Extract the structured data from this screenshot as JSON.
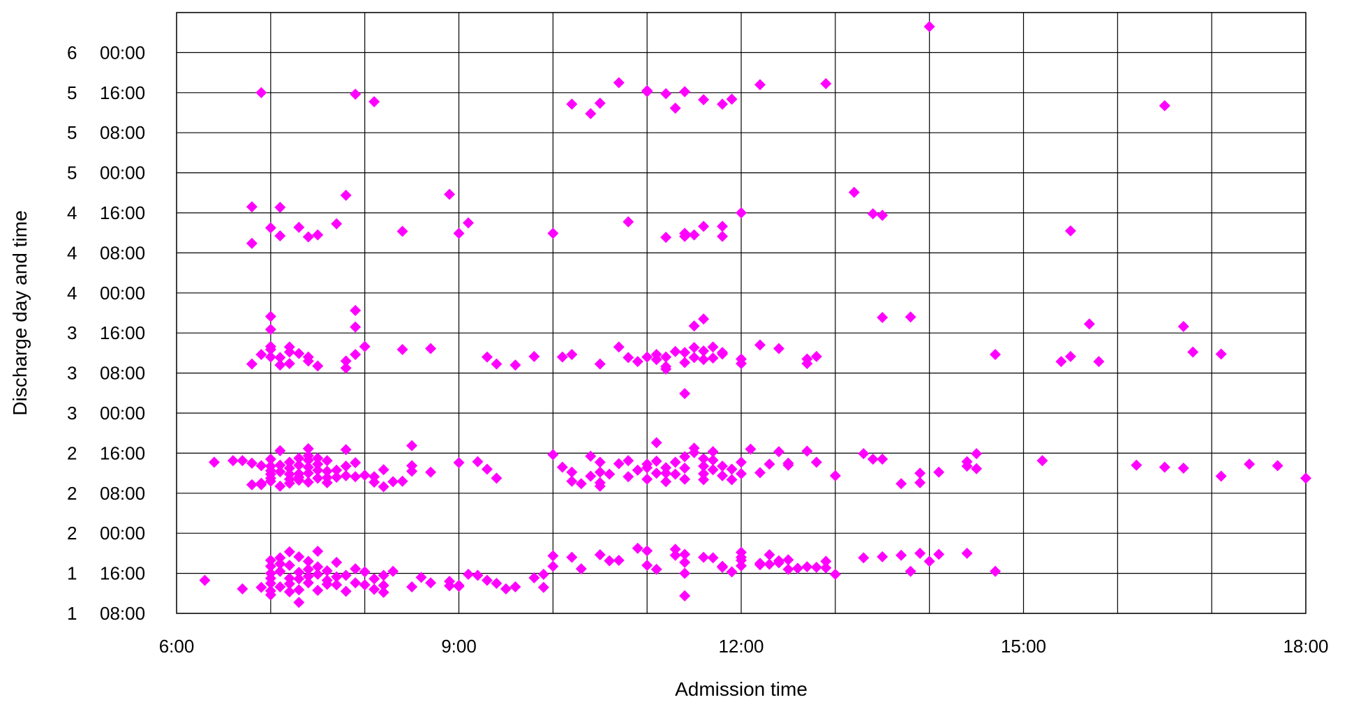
{
  "chart_data": {
    "type": "scatter",
    "title": "",
    "xlabel": "Admission time",
    "ylabel": "Discharge day and time",
    "x_unit": "hour of day",
    "y_unit": "hours after midnight of day 1",
    "xlim": [
      6,
      18
    ],
    "ylim": [
      8,
      128
    ],
    "grid": true,
    "marker": "diamond",
    "marker_color": "#ff00ff",
    "x_tick_labels": [
      {
        "value": 6,
        "label": "6:00"
      },
      {
        "value": 9,
        "label": "9:00"
      },
      {
        "value": 12,
        "label": "12:00"
      },
      {
        "value": 15,
        "label": "15:00"
      },
      {
        "value": 18,
        "label": "18:00"
      }
    ],
    "x_gridlines": [
      6,
      7,
      8,
      9,
      10,
      11,
      12,
      13,
      14,
      15,
      16,
      17,
      18
    ],
    "y_tick_labels": [
      {
        "value": 8,
        "day": "1",
        "time": "08:00"
      },
      {
        "value": 16,
        "day": "1",
        "time": "16:00"
      },
      {
        "value": 24,
        "day": "2",
        "time": "00:00"
      },
      {
        "value": 32,
        "day": "2",
        "time": "08:00"
      },
      {
        "value": 40,
        "day": "2",
        "time": "16:00"
      },
      {
        "value": 48,
        "day": "3",
        "time": "00:00"
      },
      {
        "value": 56,
        "day": "3",
        "time": "08:00"
      },
      {
        "value": 64,
        "day": "3",
        "time": "16:00"
      },
      {
        "value": 72,
        "day": "4",
        "time": "00:00"
      },
      {
        "value": 80,
        "day": "4",
        "time": "08:00"
      },
      {
        "value": 88,
        "day": "4",
        "time": "16:00"
      },
      {
        "value": 96,
        "day": "5",
        "time": "00:00"
      },
      {
        "value": 104,
        "day": "5",
        "time": "08:00"
      },
      {
        "value": 112,
        "day": "5",
        "time": "16:00"
      },
      {
        "value": 120,
        "day": "6",
        "time": "00:00"
      }
    ],
    "points": [
      [
        6.9,
        112.0
      ],
      [
        7.9,
        111.7
      ],
      [
        8.1,
        110.2
      ],
      [
        10.2,
        109.7
      ],
      [
        10.5,
        109.9
      ],
      [
        10.4,
        107.8
      ],
      [
        10.7,
        114.0
      ],
      [
        11.0,
        112.2
      ],
      [
        11.0,
        112.4
      ],
      [
        11.2,
        111.8
      ],
      [
        11.4,
        112.2
      ],
      [
        11.6,
        110.6
      ],
      [
        11.3,
        108.9
      ],
      [
        11.9,
        110.7
      ],
      [
        11.8,
        109.7
      ],
      [
        12.2,
        113.6
      ],
      [
        12.9,
        113.8
      ],
      [
        14.0,
        125.2
      ],
      [
        16.5,
        109.4
      ],
      [
        6.8,
        89.2
      ],
      [
        7.1,
        89.1
      ],
      [
        7.0,
        85.0
      ],
      [
        7.1,
        83.4
      ],
      [
        7.3,
        85.1
      ],
      [
        7.4,
        83.2
      ],
      [
        7.5,
        83.6
      ],
      [
        7.7,
        85.8
      ],
      [
        7.8,
        91.5
      ],
      [
        6.8,
        81.9
      ],
      [
        8.4,
        84.3
      ],
      [
        8.9,
        91.7
      ],
      [
        9.0,
        83.9
      ],
      [
        9.1,
        86.0
      ],
      [
        10.0,
        83.9
      ],
      [
        10.8,
        86.2
      ],
      [
        11.2,
        83.1
      ],
      [
        11.4,
        83.9
      ],
      [
        11.4,
        83.3
      ],
      [
        11.5,
        83.6
      ],
      [
        11.6,
        85.3
      ],
      [
        11.8,
        85.3
      ],
      [
        11.8,
        83.3
      ],
      [
        12.0,
        88.0
      ],
      [
        13.2,
        92.1
      ],
      [
        13.4,
        87.8
      ],
      [
        13.5,
        87.5
      ],
      [
        15.5,
        84.4
      ],
      [
        6.8,
        57.8
      ],
      [
        6.9,
        59.7
      ],
      [
        7.0,
        59.2
      ],
      [
        7.0,
        60.7
      ],
      [
        7.0,
        61.3
      ],
      [
        7.0,
        64.7
      ],
      [
        7.0,
        67.3
      ],
      [
        7.1,
        57.6
      ],
      [
        7.1,
        59.1
      ],
      [
        7.2,
        60.2
      ],
      [
        7.2,
        61.2
      ],
      [
        7.2,
        57.9
      ],
      [
        7.3,
        59.9
      ],
      [
        7.4,
        58.4
      ],
      [
        7.4,
        59.2
      ],
      [
        7.5,
        57.4
      ],
      [
        7.8,
        57.0
      ],
      [
        7.8,
        58.4
      ],
      [
        7.9,
        59.7
      ],
      [
        7.9,
        65.2
      ],
      [
        7.9,
        68.5
      ],
      [
        8.0,
        61.3
      ],
      [
        8.4,
        60.7
      ],
      [
        8.7,
        60.9
      ],
      [
        9.3,
        59.2
      ],
      [
        9.4,
        57.8
      ],
      [
        9.6,
        57.6
      ],
      [
        9.8,
        59.3
      ],
      [
        10.1,
        59.2
      ],
      [
        10.2,
        59.7
      ],
      [
        10.5,
        57.8
      ],
      [
        10.7,
        61.2
      ],
      [
        10.8,
        59.1
      ],
      [
        10.9,
        58.3
      ],
      [
        11.0,
        59.2
      ],
      [
        11.1,
        59.7
      ],
      [
        11.1,
        58.7
      ],
      [
        11.2,
        59.2
      ],
      [
        11.2,
        57.3
      ],
      [
        11.2,
        56.8
      ],
      [
        11.3,
        60.3
      ],
      [
        11.4,
        58.1
      ],
      [
        11.4,
        60.1
      ],
      [
        11.4,
        51.9
      ],
      [
        11.5,
        59.1
      ],
      [
        11.5,
        61.1
      ],
      [
        11.5,
        65.4
      ],
      [
        11.6,
        58.7
      ],
      [
        11.6,
        60.4
      ],
      [
        11.6,
        66.8
      ],
      [
        11.7,
        61.2
      ],
      [
        11.7,
        59.0
      ],
      [
        11.8,
        59.8
      ],
      [
        11.8,
        60.1
      ],
      [
        12.0,
        57.9
      ],
      [
        12.0,
        58.8
      ],
      [
        12.2,
        61.6
      ],
      [
        12.4,
        60.9
      ],
      [
        12.7,
        57.9
      ],
      [
        12.8,
        59.3
      ],
      [
        12.7,
        58.8
      ],
      [
        13.5,
        67.1
      ],
      [
        13.8,
        67.2
      ],
      [
        14.7,
        59.7
      ],
      [
        15.4,
        58.3
      ],
      [
        15.5,
        59.3
      ],
      [
        15.7,
        65.8
      ],
      [
        15.8,
        58.3
      ],
      [
        16.7,
        65.3
      ],
      [
        16.8,
        60.2
      ],
      [
        17.1,
        59.8
      ],
      [
        6.4,
        38.2
      ],
      [
        6.6,
        38.5
      ],
      [
        6.7,
        38.5
      ],
      [
        6.8,
        38.0
      ],
      [
        6.9,
        37.5
      ],
      [
        6.8,
        33.7
      ],
      [
        6.9,
        34.0
      ],
      [
        6.9,
        33.7
      ],
      [
        7.0,
        38.8
      ],
      [
        7.0,
        37.4
      ],
      [
        7.0,
        36.5
      ],
      [
        7.0,
        35.8
      ],
      [
        7.0,
        35.0
      ],
      [
        7.0,
        34.4
      ],
      [
        7.1,
        33.4
      ],
      [
        7.1,
        36.3
      ],
      [
        7.1,
        37.6
      ],
      [
        7.1,
        40.5
      ],
      [
        7.2,
        38.2
      ],
      [
        7.2,
        37.0
      ],
      [
        7.2,
        35.8
      ],
      [
        7.2,
        34.8
      ],
      [
        7.2,
        34.0
      ],
      [
        7.3,
        35.9
      ],
      [
        7.3,
        37.6
      ],
      [
        7.3,
        39.0
      ],
      [
        7.3,
        35.2
      ],
      [
        7.3,
        34.6
      ],
      [
        7.4,
        38.6
      ],
      [
        7.4,
        39.5
      ],
      [
        7.4,
        37.2
      ],
      [
        7.4,
        36.0
      ],
      [
        7.4,
        34.2
      ],
      [
        7.4,
        40.9
      ],
      [
        7.5,
        39.0
      ],
      [
        7.5,
        37.8
      ],
      [
        7.5,
        36.6
      ],
      [
        7.5,
        35.0
      ],
      [
        7.6,
        38.5
      ],
      [
        7.6,
        36.4
      ],
      [
        7.6,
        35.1
      ],
      [
        7.6,
        34.1
      ],
      [
        7.7,
        36.6
      ],
      [
        7.7,
        35.2
      ],
      [
        7.8,
        40.7
      ],
      [
        7.8,
        37.4
      ],
      [
        7.8,
        35.5
      ],
      [
        7.9,
        35.3
      ],
      [
        7.9,
        38.1
      ],
      [
        8.0,
        35.6
      ],
      [
        8.1,
        35.3
      ],
      [
        8.1,
        34.2
      ],
      [
        8.2,
        36.7
      ],
      [
        8.2,
        33.3
      ],
      [
        8.3,
        34.3
      ],
      [
        8.4,
        34.4
      ],
      [
        8.5,
        37.5
      ],
      [
        8.5,
        36.4
      ],
      [
        8.5,
        41.5
      ],
      [
        8.7,
        36.2
      ],
      [
        9.0,
        38.1
      ],
      [
        9.2,
        38.3
      ],
      [
        9.3,
        36.8
      ],
      [
        9.4,
        35.0
      ],
      [
        10.0,
        39.7
      ],
      [
        10.1,
        37.2
      ],
      [
        10.2,
        36.2
      ],
      [
        10.2,
        34.4
      ],
      [
        10.3,
        33.9
      ],
      [
        10.4,
        39.4
      ],
      [
        10.5,
        38.2
      ],
      [
        10.5,
        36.2
      ],
      [
        10.4,
        35.4
      ],
      [
        10.5,
        33.4
      ],
      [
        10.5,
        34.1
      ],
      [
        10.6,
        35.8
      ],
      [
        10.7,
        37.9
      ],
      [
        10.8,
        35.3
      ],
      [
        10.8,
        38.5
      ],
      [
        10.9,
        36.6
      ],
      [
        11.0,
        37.1
      ],
      [
        11.0,
        34.8
      ],
      [
        11.0,
        37.8
      ],
      [
        11.1,
        36.0
      ],
      [
        11.1,
        38.4
      ],
      [
        11.1,
        42.1
      ],
      [
        11.2,
        37.1
      ],
      [
        11.2,
        36.0
      ],
      [
        11.2,
        34.3
      ],
      [
        11.3,
        35.8
      ],
      [
        11.3,
        38.2
      ],
      [
        11.4,
        37.0
      ],
      [
        11.4,
        34.8
      ],
      [
        11.5,
        40.1
      ],
      [
        11.4,
        39.3
      ],
      [
        11.5,
        41.0
      ],
      [
        11.6,
        38.9
      ],
      [
        11.6,
        37.4
      ],
      [
        11.6,
        35.9
      ],
      [
        11.6,
        34.7
      ],
      [
        11.7,
        40.3
      ],
      [
        11.7,
        38.6
      ],
      [
        11.7,
        36.7
      ],
      [
        11.8,
        35.5
      ],
      [
        11.8,
        37.4
      ],
      [
        11.9,
        34.7
      ],
      [
        11.9,
        36.8
      ],
      [
        12.0,
        35.9
      ],
      [
        12.0,
        38.2
      ],
      [
        12.1,
        40.8
      ],
      [
        12.2,
        36.1
      ],
      [
        12.3,
        37.8
      ],
      [
        12.4,
        40.3
      ],
      [
        12.5,
        38.0
      ],
      [
        12.5,
        37.6
      ],
      [
        12.7,
        40.4
      ],
      [
        12.8,
        38.2
      ],
      [
        13.0,
        35.5
      ],
      [
        13.3,
        39.9
      ],
      [
        13.4,
        38.8
      ],
      [
        13.5,
        38.8
      ],
      [
        13.7,
        33.9
      ],
      [
        13.9,
        36.0
      ],
      [
        13.9,
        34.1
      ],
      [
        14.1,
        36.2
      ],
      [
        14.4,
        38.3
      ],
      [
        14.4,
        37.4
      ],
      [
        14.5,
        36.9
      ],
      [
        14.5,
        39.9
      ],
      [
        15.2,
        38.5
      ],
      [
        16.2,
        37.6
      ],
      [
        16.5,
        37.2
      ],
      [
        16.7,
        37.0
      ],
      [
        17.1,
        35.4
      ],
      [
        17.4,
        37.8
      ],
      [
        17.7,
        37.5
      ],
      [
        18.0,
        35.0
      ],
      [
        6.3,
        14.6
      ],
      [
        6.7,
        12.9
      ],
      [
        6.9,
        13.2
      ],
      [
        7.0,
        18.6
      ],
      [
        7.0,
        17.4
      ],
      [
        7.0,
        16.0
      ],
      [
        7.0,
        15.0
      ],
      [
        7.0,
        14.0
      ],
      [
        7.0,
        12.5
      ],
      [
        7.0,
        11.7
      ],
      [
        7.1,
        19.1
      ],
      [
        7.1,
        17.9
      ],
      [
        7.1,
        16.4
      ],
      [
        7.1,
        13.3
      ],
      [
        7.2,
        17.6
      ],
      [
        7.2,
        15.0
      ],
      [
        7.2,
        13.9
      ],
      [
        7.2,
        12.3
      ],
      [
        7.2,
        20.3
      ],
      [
        7.3,
        19.3
      ],
      [
        7.3,
        16.2
      ],
      [
        7.3,
        14.9
      ],
      [
        7.3,
        12.7
      ],
      [
        7.3,
        10.2
      ],
      [
        7.4,
        18.4
      ],
      [
        7.4,
        16.8
      ],
      [
        7.4,
        15.4
      ],
      [
        7.4,
        14.1
      ],
      [
        7.5,
        20.4
      ],
      [
        7.5,
        17.3
      ],
      [
        7.5,
        15.8
      ],
      [
        7.5,
        12.6
      ],
      [
        7.6,
        16.5
      ],
      [
        7.6,
        14.6
      ],
      [
        7.6,
        13.8
      ],
      [
        7.7,
        18.2
      ],
      [
        7.7,
        15.3
      ],
      [
        7.7,
        13.7
      ],
      [
        7.8,
        15.6
      ],
      [
        7.8,
        12.4
      ],
      [
        7.9,
        14.1
      ],
      [
        7.9,
        16.9
      ],
      [
        8.0,
        16.3
      ],
      [
        8.0,
        13.7
      ],
      [
        8.1,
        14.9
      ],
      [
        8.1,
        12.8
      ],
      [
        8.2,
        15.6
      ],
      [
        8.2,
        13.6
      ],
      [
        8.2,
        12.2
      ],
      [
        8.3,
        16.4
      ],
      [
        8.5,
        13.3
      ],
      [
        8.6,
        15.2
      ],
      [
        8.7,
        14.1
      ],
      [
        8.9,
        14.4
      ],
      [
        8.9,
        13.5
      ],
      [
        9.0,
        13.4
      ],
      [
        9.0,
        13.6
      ],
      [
        9.1,
        15.8
      ],
      [
        9.2,
        15.6
      ],
      [
        9.3,
        14.6
      ],
      [
        9.4,
        14.0
      ],
      [
        9.5,
        12.9
      ],
      [
        9.6,
        13.3
      ],
      [
        9.8,
        15.1
      ],
      [
        9.9,
        13.2
      ],
      [
        9.9,
        15.8
      ],
      [
        10.0,
        19.5
      ],
      [
        10.0,
        17.4
      ],
      [
        10.2,
        19.2
      ],
      [
        10.3,
        16.9
      ],
      [
        10.5,
        19.7
      ],
      [
        10.6,
        18.5
      ],
      [
        10.7,
        18.6
      ],
      [
        10.9,
        21.0
      ],
      [
        11.0,
        17.6
      ],
      [
        11.0,
        20.5
      ],
      [
        11.1,
        16.8
      ],
      [
        11.3,
        20.8
      ],
      [
        11.3,
        19.6
      ],
      [
        11.4,
        19.8
      ],
      [
        11.4,
        18.2
      ],
      [
        11.4,
        16.0
      ],
      [
        11.4,
        11.5
      ],
      [
        11.6,
        19.2
      ],
      [
        11.7,
        19.1
      ],
      [
        11.8,
        17.2
      ],
      [
        11.8,
        17.4
      ],
      [
        11.9,
        16.3
      ],
      [
        12.0,
        20.2
      ],
      [
        12.0,
        19.2
      ],
      [
        12.0,
        18.6
      ],
      [
        12.0,
        17.5
      ],
      [
        12.2,
        18.0
      ],
      [
        12.2,
        17.7
      ],
      [
        12.3,
        19.7
      ],
      [
        12.3,
        17.8
      ],
      [
        12.4,
        18.1
      ],
      [
        12.4,
        18.5
      ],
      [
        12.5,
        18.7
      ],
      [
        12.5,
        16.8
      ],
      [
        12.6,
        17.0
      ],
      [
        12.7,
        17.3
      ],
      [
        12.8,
        17.2
      ],
      [
        12.9,
        17.1
      ],
      [
        12.9,
        18.4
      ],
      [
        13.0,
        15.8
      ],
      [
        13.3,
        19.1
      ],
      [
        13.5,
        19.3
      ],
      [
        13.7,
        19.6
      ],
      [
        13.8,
        16.4
      ],
      [
        13.9,
        20.0
      ],
      [
        14.0,
        18.4
      ],
      [
        14.1,
        19.8
      ],
      [
        14.4,
        20.0
      ],
      [
        14.7,
        16.4
      ]
    ]
  }
}
